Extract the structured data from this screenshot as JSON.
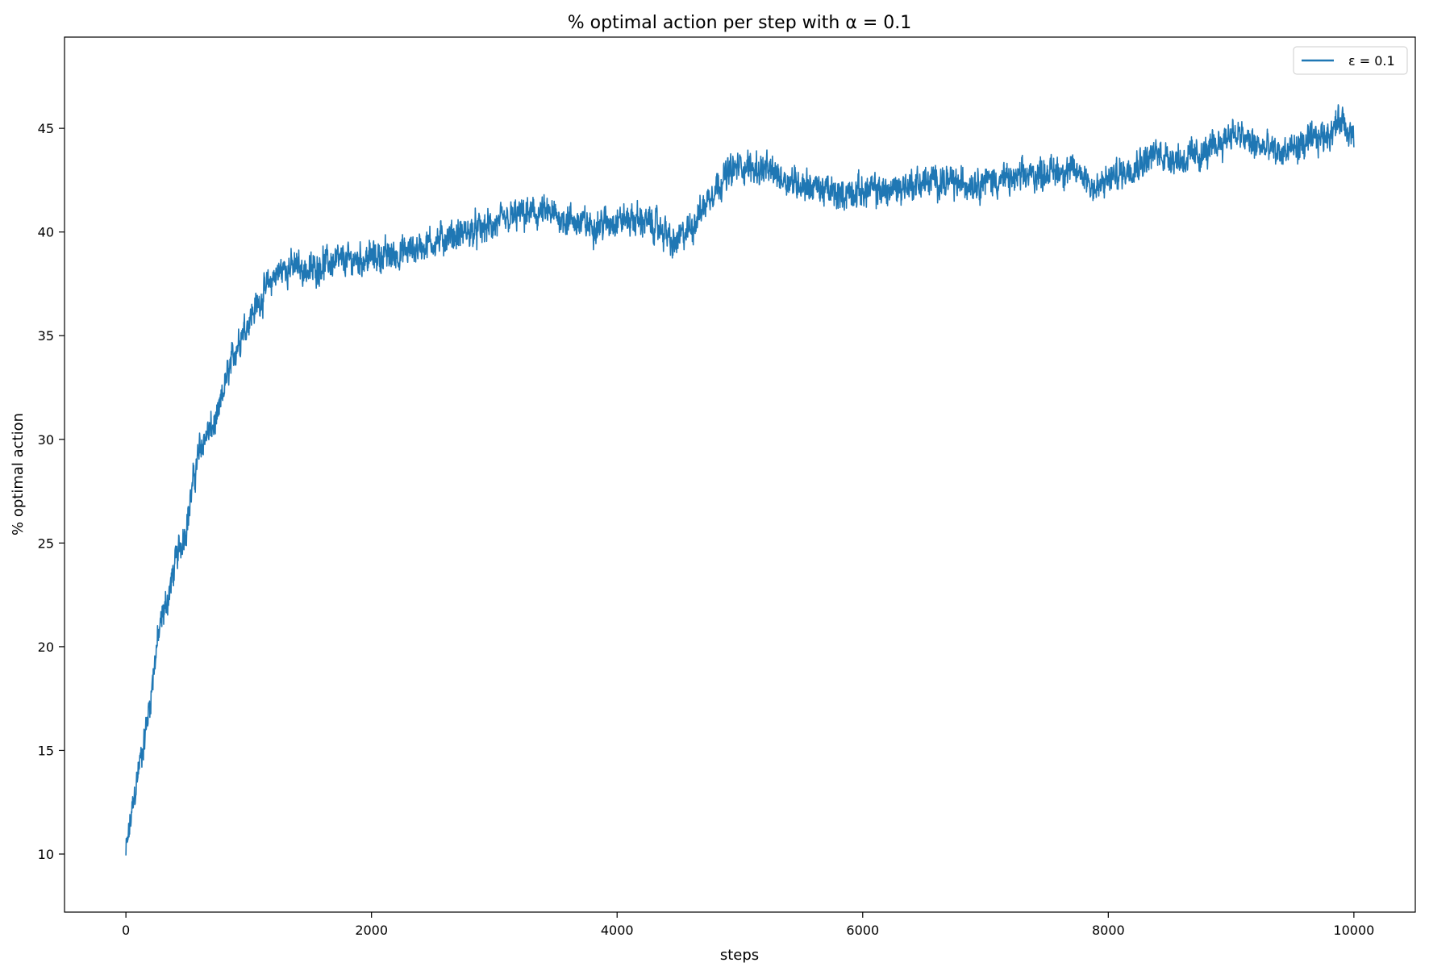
{
  "chart_data": {
    "type": "line",
    "title": "% optimal action per step with α = 0.1",
    "xlabel": "steps",
    "ylabel": "% optimal action",
    "xlim": [
      -500,
      10500
    ],
    "ylim": [
      7.2,
      49.4
    ],
    "xticks": [
      0,
      2000,
      4000,
      6000,
      8000,
      10000
    ],
    "xtick_labels": [
      "0",
      "2000",
      "4000",
      "6000",
      "8000",
      "10000"
    ],
    "yticks": [
      10,
      15,
      20,
      25,
      30,
      35,
      40,
      45
    ],
    "ytick_labels": [
      "10",
      "15",
      "20",
      "25",
      "30",
      "35",
      "40",
      "45"
    ],
    "grid": false,
    "legend_position": "top-right",
    "series_color": "#1f77b4",
    "series": [
      {
        "name": "ε = 0.1",
        "noise_amplitude": 0.8,
        "x": [
          0,
          25,
          50,
          100,
          150,
          200,
          250,
          300,
          350,
          400,
          450,
          500,
          550,
          600,
          650,
          700,
          750,
          800,
          850,
          900,
          950,
          1000,
          1050,
          1100,
          1150,
          1200,
          1250,
          1300,
          1400,
          1500,
          1600,
          1800,
          2000,
          2200,
          2400,
          2600,
          2800,
          3000,
          3200,
          3400,
          3600,
          3800,
          4000,
          4200,
          4400,
          4450,
          4500,
          4600,
          4700,
          4800,
          4900,
          5000,
          5200,
          5400,
          5600,
          5800,
          6000,
          6200,
          6400,
          6600,
          6800,
          7000,
          7200,
          7400,
          7600,
          7800,
          7900,
          8000,
          8200,
          8400,
          8600,
          8800,
          9000,
          9200,
          9400,
          9600,
          9800,
          9900,
          10000
        ],
        "y": [
          10.0,
          11.0,
          12.0,
          14.0,
          15.5,
          17.5,
          20.0,
          21.5,
          22.5,
          24.0,
          25.0,
          26.0,
          28.0,
          29.5,
          30.2,
          30.5,
          31.0,
          32.5,
          33.5,
          34.5,
          35.2,
          35.8,
          36.3,
          36.8,
          37.3,
          37.8,
          38.1,
          38.3,
          38.3,
          38.1,
          38.5,
          38.6,
          38.8,
          38.9,
          39.3,
          39.7,
          40.0,
          40.3,
          40.8,
          40.9,
          40.6,
          40.3,
          40.6,
          40.6,
          40.0,
          39.3,
          39.6,
          40.2,
          41.2,
          42.2,
          42.8,
          43.2,
          43.0,
          42.5,
          42.2,
          41.8,
          42.0,
          42.0,
          42.3,
          42.5,
          42.3,
          42.5,
          42.5,
          42.8,
          43.0,
          42.8,
          42.0,
          42.5,
          43.2,
          43.8,
          43.5,
          43.8,
          44.8,
          44.2,
          43.8,
          44.2,
          44.8,
          45.5,
          44.5
        ]
      }
    ]
  }
}
